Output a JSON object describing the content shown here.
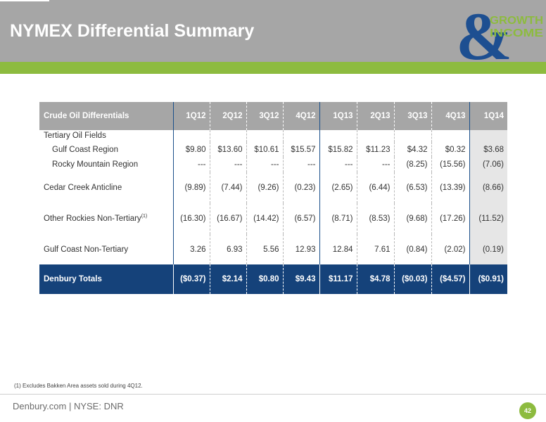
{
  "header": {
    "title": "NYMEX Differential Summary",
    "logo_word1": "GROWTH",
    "logo_word2": "INCOME",
    "logo_symbol": "&"
  },
  "table": {
    "header_label": "Crude Oil Differentials",
    "columns": [
      "1Q12",
      "2Q12",
      "3Q12",
      "4Q12",
      "1Q13",
      "2Q13",
      "3Q13",
      "4Q13",
      "1Q14"
    ],
    "group_label": "Tertiary Oil Fields",
    "rows": [
      {
        "label": "Gulf Coast Region",
        "values": [
          "$9.80",
          "$13.60",
          "$10.61",
          "$15.57",
          "$15.82",
          "$11.23",
          "$4.32",
          "$0.32",
          "$3.68"
        ]
      },
      {
        "label": "Rocky Mountain Region",
        "values": [
          "---",
          "---",
          "---",
          "---",
          "---",
          "---",
          "(8.25)",
          "(15.56)",
          "(7.06)"
        ]
      },
      {
        "label": "Cedar Creek Anticline",
        "values": [
          "(9.89)",
          "(7.44)",
          "(9.26)",
          "(0.23)",
          "(2.65)",
          "(6.44)",
          "(6.53)",
          "(13.39)",
          "(8.66)"
        ]
      },
      {
        "label": "Other Rockies Non-Tertiary",
        "footnote_mark": "(1)",
        "values": [
          "(16.30)",
          "(16.67)",
          "(14.42)",
          "(6.57)",
          "(8.71)",
          "(8.53)",
          "(9.68)",
          "(17.26)",
          "(11.52)"
        ]
      },
      {
        "label": "Gulf Coast Non-Tertiary",
        "values": [
          "3.26",
          "6.93",
          "5.56",
          "12.93",
          "12.84",
          "7.61",
          "(0.84)",
          "(2.02)",
          "(0.19)"
        ]
      }
    ],
    "total": {
      "label": "Denbury Totals",
      "values": [
        "($0.37)",
        "$2.14",
        "$0.80",
        "$9.43",
        "$11.17",
        "$4.78",
        "($0.03)",
        "($4.57)",
        "($0.91)"
      ]
    }
  },
  "footnote": "(1) Excludes Bakken Area assets sold during 4Q12.",
  "footer": {
    "text": "Denbury.com | NYSE: DNR",
    "page_number": "42"
  },
  "colors": {
    "header_gray": "#a6a6a6",
    "accent_green": "#8dbb3f",
    "total_navy": "#15427a",
    "logo_blue": "#1d4f91"
  }
}
